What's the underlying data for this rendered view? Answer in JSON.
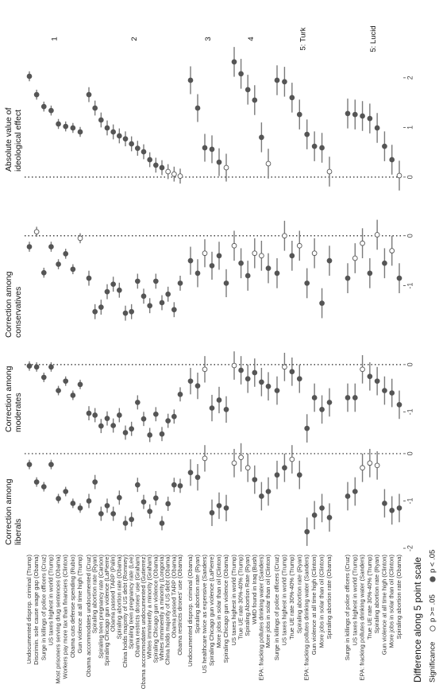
{
  "chart_data": {
    "type": "dot",
    "x_title": "Difference along 5 point scale",
    "legend": {
      "title": "Significance",
      "entries": [
        {
          "label": "p >= .05",
          "fill": "#ffffff"
        },
        {
          "label": "p < .05",
          "fill": "#555555"
        }
      ]
    },
    "point_color": "#555555",
    "errorbar_color": "#7a7a7a",
    "groups": [
      {
        "label": "1",
        "categories": [
          "Undocumented disprop. criminal (Trump)",
          "Discrimin. sole cause wage gap (Obama)",
          "Surge in killings of police officers (Cruz)",
          "US taxes highest in world (Trump)",
          "Most prisoners serving drug sentences (Obama)",
          "Workers pay more tax than financiers (Clinton)",
          "Obama cuts defense spending (Rubio)",
          "Gun violence at all time high (Trump)"
        ]
      },
      {
        "label": "2",
        "categories": [
          "Obama accommodates undocumented (Cruz)",
          "Spiraling abortion rate (Ryan)",
          "Spiraling teen pregnancy rate (Carson)",
          "Spiraling Chicago gun violence (LaPierre)",
          "Obama passed TARP (Palin)",
          "Spiraling abortion rate (Obama)",
          "China holds majority of US debt (Romney)",
          "Spiraling teen pregnancy rate (Lee)",
          "Obama restricts drones' use (Graham)",
          "Obama accommodates undocumented (Gutierrez)",
          "Whites imminently a minority (Graham)",
          "Spiraling Chicago gun violence (Obama)",
          "Whites imminently a minority (Longoria)",
          "China holds majority of US debt (Obama)",
          "Obama passed TARP (Obama)",
          "Obama restricts drones' use (Obama)"
        ]
      },
      {
        "label": "3",
        "categories": [
          "Undocumented disprop. criminal (Obama)",
          "Spiraling abortion rate (Ryan)",
          "US healthcare twice as expensive (Sanders)",
          "Spiraling Chicago gun violence (LaPierre)",
          "More jobs in solar than oil (Clinton)",
          "Spiraling Chicago gun violence (Obama)"
        ]
      },
      {
        "label": "4",
        "categories": [
          "US taxes highest in world (Trump)",
          "True UE rate 30%-40% (Trump)",
          "Spiraling Abortion Rate (Ryan)",
          "WMD found in Iraq (Bush)",
          "EPA: fracking pollutes drinking water (Sanders)",
          "More jobs in solar than oil (Clinton)"
        ]
      },
      {
        "label": "5: Turk",
        "categories": [
          "Surge in killings of police officers (Cruz)",
          "US taxes highest in world (Trump)",
          "True UE rate 30%-40% (Trump)",
          "Spiraling abortion rate (Ryan)",
          "EPA: fracking pollutes drinking water (Sanders)",
          "Gun violence at all time high (Clinton)",
          "More jobs in solar than oil (Clinton)",
          "Spiraling abortion rate (Obama)"
        ]
      },
      {
        "label": "5: Lucid",
        "categories": [
          "Surge in killings of police officers (Cruz)",
          "US taxes highest in world (Trump)",
          "EPA: fracking pollutes drinking water (Sanders)",
          "True UE rate 30%-40% (Trump)",
          "Spiraling abortion rate (Ryan)",
          "Gun violence at all time high (Clinton)",
          "More jobs in solar than oil (Clinton)",
          "Spiraling abortion rate (Obama)"
        ]
      }
    ],
    "facets": [
      {
        "title_lines": [
          "Correction among",
          "liberals"
        ],
        "xlim": [
          -2.1,
          0.2
        ],
        "xticks": [
          -2,
          -1,
          0
        ],
        "values": [
          -0.23,
          -0.6,
          -0.7,
          -0.23,
          -0.95,
          -0.8,
          -1.05,
          -1.15,
          -1.0,
          -0.6,
          -1.27,
          -1.1,
          -1.27,
          -0.93,
          -1.47,
          -1.39,
          -0.66,
          -1.02,
          -1.22,
          -0.94,
          -1.47,
          -1.06,
          -0.66,
          -0.68,
          -0.4,
          -0.5,
          -0.1,
          -1.25,
          -1.1,
          -1.15,
          -0.2,
          -0.08,
          -0.3,
          -0.55,
          -0.9,
          -0.8,
          -0.45,
          -0.3,
          -0.12,
          -0.45,
          -1.65,
          -1.3,
          -1.15,
          -1.35,
          -0.9,
          -0.8,
          -0.3,
          -0.2,
          -0.25,
          -1.05,
          -1.2,
          -1.15
        ],
        "errors": [
          0.1,
          0.1,
          0.1,
          0.1,
          0.1,
          0.1,
          0.1,
          0.1,
          0.15,
          0.15,
          0.15,
          0.15,
          0.15,
          0.15,
          0.15,
          0.15,
          0.15,
          0.15,
          0.15,
          0.15,
          0.15,
          0.15,
          0.15,
          0.15,
          0.28,
          0.28,
          0.28,
          0.28,
          0.28,
          0.28,
          0.3,
          0.3,
          0.3,
          0.3,
          0.3,
          0.3,
          0.3,
          0.3,
          0.3,
          0.3,
          0.3,
          0.3,
          0.3,
          0.3,
          0.3,
          0.3,
          0.3,
          0.3,
          0.3,
          0.3,
          0.3,
          0.3
        ],
        "significant": [
          true,
          true,
          true,
          true,
          true,
          true,
          true,
          true,
          true,
          true,
          true,
          true,
          true,
          true,
          true,
          true,
          true,
          true,
          true,
          true,
          true,
          true,
          true,
          true,
          true,
          true,
          false,
          true,
          true,
          true,
          false,
          false,
          false,
          true,
          true,
          true,
          true,
          true,
          false,
          true,
          true,
          true,
          true,
          true,
          true,
          true,
          false,
          false,
          false,
          true,
          true,
          true
        ]
      },
      {
        "title_lines": [
          "Correction among",
          "moderates"
        ],
        "xlim": [
          -1.6,
          0.25
        ],
        "xticks": [
          -1,
          0
        ],
        "values": [
          -0.03,
          -0.05,
          -0.27,
          -0.05,
          -0.55,
          -0.35,
          -0.65,
          -0.42,
          -1.03,
          -1.07,
          -1.3,
          -1.14,
          -1.29,
          -1.07,
          -1.44,
          -1.36,
          -0.8,
          -1.15,
          -1.49,
          -1.05,
          -1.47,
          -1.19,
          -1.1,
          -0.63,
          -0.35,
          -0.45,
          -0.1,
          -0.92,
          -0.75,
          -0.95,
          -0.02,
          -0.12,
          -0.3,
          -0.17,
          -0.37,
          -0.46,
          -0.55,
          -0.05,
          -0.15,
          -0.3,
          -1.35,
          -0.7,
          -0.95,
          -0.8,
          -0.7,
          -0.7,
          -0.1,
          -0.25,
          -0.35,
          -0.55,
          -0.6,
          -0.85
        ],
        "errors": [
          0.1,
          0.1,
          0.1,
          0.1,
          0.1,
          0.1,
          0.1,
          0.1,
          0.15,
          0.15,
          0.15,
          0.15,
          0.15,
          0.15,
          0.15,
          0.15,
          0.15,
          0.15,
          0.15,
          0.15,
          0.15,
          0.15,
          0.15,
          0.15,
          0.28,
          0.28,
          0.28,
          0.28,
          0.28,
          0.28,
          0.3,
          0.3,
          0.3,
          0.3,
          0.3,
          0.3,
          0.3,
          0.3,
          0.3,
          0.3,
          0.3,
          0.3,
          0.3,
          0.3,
          0.3,
          0.3,
          0.3,
          0.3,
          0.3,
          0.3,
          0.3,
          0.3
        ],
        "significant": [
          true,
          true,
          true,
          true,
          true,
          true,
          true,
          true,
          true,
          true,
          true,
          true,
          true,
          true,
          true,
          true,
          true,
          true,
          true,
          true,
          true,
          true,
          true,
          true,
          true,
          true,
          false,
          true,
          true,
          true,
          false,
          true,
          true,
          true,
          true,
          true,
          true,
          false,
          true,
          true,
          true,
          true,
          true,
          true,
          true,
          true,
          false,
          true,
          true,
          true,
          true,
          true
        ]
      },
      {
        "title_lines": [
          "Correction among",
          "conservatives"
        ],
        "xlim": [
          -2.2,
          0.25
        ],
        "xticks": [
          -1,
          0
        ],
        "values": [
          -0.22,
          0.08,
          -0.74,
          -0.22,
          -0.57,
          -0.36,
          -0.67,
          -0.05,
          -0.85,
          -1.52,
          -1.43,
          -1.12,
          -0.97,
          -1.09,
          -1.55,
          -1.52,
          -0.91,
          -1.21,
          -1.4,
          -0.91,
          -1.34,
          -1.17,
          -1.48,
          -0.95,
          -0.5,
          -0.75,
          -0.35,
          -0.6,
          -0.4,
          -0.95,
          -0.2,
          -0.55,
          -0.8,
          -0.35,
          -0.4,
          -0.65,
          -0.75,
          0.0,
          -0.4,
          -0.2,
          -0.95,
          -0.35,
          -1.35,
          -0.5,
          -0.85,
          -0.45,
          -0.15,
          -0.75,
          0.02,
          -0.55,
          -0.3,
          -0.85
        ],
        "errors": [
          0.1,
          0.1,
          0.1,
          0.1,
          0.1,
          0.1,
          0.1,
          0.1,
          0.15,
          0.15,
          0.15,
          0.15,
          0.15,
          0.15,
          0.15,
          0.15,
          0.15,
          0.15,
          0.15,
          0.15,
          0.15,
          0.15,
          0.15,
          0.15,
          0.28,
          0.28,
          0.28,
          0.28,
          0.28,
          0.28,
          0.3,
          0.3,
          0.3,
          0.3,
          0.3,
          0.3,
          0.3,
          0.3,
          0.3,
          0.3,
          0.3,
          0.3,
          0.3,
          0.3,
          0.3,
          0.3,
          0.3,
          0.3,
          0.3,
          0.3,
          0.3,
          0.3
        ],
        "significant": [
          true,
          false,
          true,
          true,
          true,
          true,
          true,
          false,
          true,
          true,
          true,
          true,
          true,
          true,
          true,
          true,
          true,
          true,
          true,
          true,
          true,
          true,
          true,
          true,
          true,
          true,
          false,
          true,
          true,
          true,
          false,
          true,
          true,
          false,
          false,
          true,
          true,
          false,
          true,
          false,
          true,
          false,
          true,
          true,
          true,
          false,
          false,
          true,
          false,
          true,
          false,
          true
        ]
      },
      {
        "title_lines": [
          "Absolute value of",
          "ideological effect"
        ],
        "xlim": [
          -0.05,
          2.35
        ],
        "xticks": [
          0,
          1,
          2
        ],
        "values": [
          2.03,
          1.66,
          1.42,
          1.34,
          1.07,
          1.02,
          0.99,
          0.91,
          1.66,
          1.39,
          1.15,
          0.99,
          0.91,
          0.83,
          0.77,
          0.67,
          0.58,
          0.51,
          0.35,
          0.24,
          0.19,
          0.11,
          0.06,
          0.02,
          1.95,
          1.39,
          0.59,
          0.56,
          0.3,
          0.19,
          2.32,
          2.08,
          1.76,
          1.55,
          0.8,
          0.27,
          1.95,
          1.92,
          1.6,
          1.26,
          0.86,
          0.62,
          0.59,
          0.11,
          1.28,
          1.26,
          1.23,
          1.18,
          0.99,
          0.62,
          0.35,
          0.03
        ],
        "errors": [
          0.1,
          0.1,
          0.1,
          0.1,
          0.1,
          0.1,
          0.1,
          0.1,
          0.15,
          0.15,
          0.15,
          0.15,
          0.15,
          0.15,
          0.15,
          0.15,
          0.15,
          0.15,
          0.15,
          0.15,
          0.15,
          0.15,
          0.15,
          0.15,
          0.28,
          0.28,
          0.28,
          0.28,
          0.28,
          0.28,
          0.3,
          0.3,
          0.3,
          0.3,
          0.3,
          0.3,
          0.3,
          0.3,
          0.3,
          0.3,
          0.3,
          0.3,
          0.3,
          0.3,
          0.3,
          0.3,
          0.3,
          0.3,
          0.3,
          0.3,
          0.3,
          0.3
        ],
        "significant": [
          true,
          true,
          true,
          true,
          true,
          true,
          true,
          true,
          true,
          true,
          true,
          true,
          true,
          true,
          true,
          true,
          true,
          true,
          true,
          true,
          true,
          false,
          false,
          false,
          true,
          true,
          true,
          true,
          true,
          false,
          true,
          true,
          true,
          true,
          true,
          false,
          true,
          true,
          true,
          true,
          true,
          true,
          true,
          false,
          true,
          true,
          true,
          true,
          true,
          true,
          true,
          false
        ]
      }
    ]
  }
}
